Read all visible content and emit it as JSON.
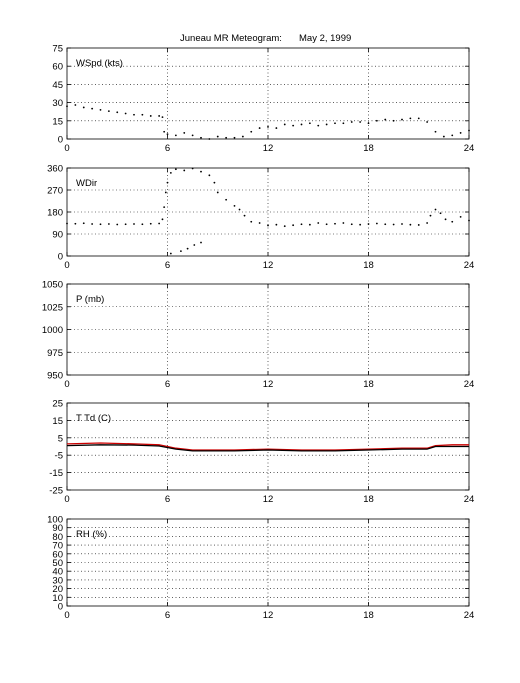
{
  "figure": {
    "title": "Juneau MR Meteogram:",
    "date": "May  2, 1999"
  },
  "chart_data": [
    {
      "type": "scatter",
      "label": "WSpd (kts)",
      "ylim": [
        0,
        75
      ],
      "yticks": [
        0,
        15,
        30,
        45,
        60,
        75
      ],
      "xlim": [
        0,
        24
      ],
      "xticks": [
        0,
        6,
        12,
        18,
        24
      ],
      "grid": true,
      "series": [
        {
          "color": "#000000",
          "points": [
            [
              0,
              27
            ],
            [
              0.5,
              28
            ],
            [
              1,
              26
            ],
            [
              1.5,
              25
            ],
            [
              2,
              24
            ],
            [
              2.5,
              23
            ],
            [
              3,
              22
            ],
            [
              3.5,
              21
            ],
            [
              4,
              20
            ],
            [
              4.5,
              20
            ],
            [
              5,
              19
            ],
            [
              5.5,
              19
            ],
            [
              5.7,
              18
            ],
            [
              5.8,
              6
            ],
            [
              6,
              4
            ],
            [
              6.5,
              3
            ],
            [
              7,
              5
            ],
            [
              7.5,
              3
            ],
            [
              8,
              1
            ],
            [
              8.5,
              0
            ],
            [
              9,
              2
            ],
            [
              9.5,
              1
            ],
            [
              10,
              1
            ],
            [
              10.5,
              2
            ],
            [
              11,
              6
            ],
            [
              11.5,
              9
            ],
            [
              12,
              10
            ],
            [
              12.5,
              9
            ],
            [
              13,
              12
            ],
            [
              13.5,
              11
            ],
            [
              14,
              12
            ],
            [
              14.5,
              13
            ],
            [
              15,
              11
            ],
            [
              15.5,
              12
            ],
            [
              16,
              13
            ],
            [
              16.5,
              13
            ],
            [
              17,
              14
            ],
            [
              17.5,
              14
            ],
            [
              18,
              13
            ],
            [
              18.5,
              15
            ],
            [
              19,
              16
            ],
            [
              19.5,
              15
            ],
            [
              20,
              16
            ],
            [
              20.5,
              17
            ],
            [
              21,
              17
            ],
            [
              21.5,
              14
            ],
            [
              22,
              6
            ],
            [
              22.5,
              2
            ],
            [
              23,
              3
            ],
            [
              23.5,
              5
            ],
            [
              24,
              7
            ]
          ]
        }
      ]
    },
    {
      "type": "scatter",
      "label": "WDir",
      "ylim": [
        0,
        360
      ],
      "yticks": [
        0,
        90,
        180,
        270,
        360
      ],
      "xlim": [
        0,
        24
      ],
      "xticks": [
        0,
        6,
        12,
        18,
        24
      ],
      "grid": true,
      "series": [
        {
          "color": "#000000",
          "points": [
            [
              0,
              133
            ],
            [
              0.5,
              132
            ],
            [
              1,
              134
            ],
            [
              1.5,
              131
            ],
            [
              2,
              130
            ],
            [
              2.5,
              131
            ],
            [
              3,
              129
            ],
            [
              3.5,
              130
            ],
            [
              4,
              131
            ],
            [
              4.5,
              130
            ],
            [
              5,
              132
            ],
            [
              5.5,
              133
            ],
            [
              5.7,
              150
            ],
            [
              5.8,
              200
            ],
            [
              5.9,
              260
            ],
            [
              6,
              300
            ],
            [
              6.2,
              340
            ],
            [
              6.5,
              355
            ],
            [
              7,
              350
            ],
            [
              7.5,
              358
            ],
            [
              8,
              345
            ],
            [
              8.5,
              330
            ],
            [
              8.8,
              300
            ],
            [
              6.2,
              10
            ],
            [
              6.8,
              20
            ],
            [
              7.2,
              30
            ],
            [
              7.6,
              45
            ],
            [
              8,
              55
            ],
            [
              9,
              260
            ],
            [
              9.5,
              230
            ],
            [
              10,
              205
            ],
            [
              10.3,
              190
            ],
            [
              10.6,
              165
            ],
            [
              11,
              140
            ],
            [
              11.5,
              135
            ],
            [
              12,
              125
            ],
            [
              12.5,
              128
            ],
            [
              13,
              122
            ],
            [
              13.5,
              126
            ],
            [
              14,
              130
            ],
            [
              14.5,
              128
            ],
            [
              15,
              135
            ],
            [
              15.5,
              130
            ],
            [
              16,
              132
            ],
            [
              16.5,
              135
            ],
            [
              17,
              130
            ],
            [
              17.5,
              128
            ],
            [
              18,
              131
            ],
            [
              18.5,
              133
            ],
            [
              19,
              130
            ],
            [
              19.5,
              129
            ],
            [
              20,
              131
            ],
            [
              20.5,
              128
            ],
            [
              21,
              127
            ],
            [
              21.5,
              135
            ],
            [
              21.7,
              165
            ],
            [
              22,
              190
            ],
            [
              22.3,
              175
            ],
            [
              22.6,
              150
            ],
            [
              23,
              140
            ],
            [
              23.5,
              160
            ],
            [
              24,
              145
            ]
          ]
        }
      ]
    },
    {
      "type": "line",
      "label": "P (mb)",
      "ylim": [
        950,
        1050
      ],
      "yticks": [
        950,
        975,
        1000,
        1025,
        1050
      ],
      "xlim": [
        0,
        24
      ],
      "xticks": [
        0,
        6,
        12,
        18,
        24
      ],
      "grid": true,
      "series": []
    },
    {
      "type": "line",
      "label": "T Td (C)",
      "ylim": [
        -25,
        25
      ],
      "yticks": [
        -25,
        -15,
        -5,
        5,
        15,
        25
      ],
      "xlim": [
        0,
        24
      ],
      "xticks": [
        0,
        6,
        12,
        18,
        24
      ],
      "grid": true,
      "series": [
        {
          "color": "#cc0000",
          "points": [
            [
              0,
              1.5
            ],
            [
              2,
              2
            ],
            [
              4,
              1.5
            ],
            [
              5.5,
              1
            ],
            [
              6.5,
              -1
            ],
            [
              7.5,
              -2
            ],
            [
              10,
              -2
            ],
            [
              12,
              -1.5
            ],
            [
              14,
              -2
            ],
            [
              16,
              -2
            ],
            [
              18,
              -1.5
            ],
            [
              20,
              -1
            ],
            [
              21.5,
              -1
            ],
            [
              22,
              0.5
            ],
            [
              23,
              1
            ],
            [
              24,
              1
            ]
          ]
        },
        {
          "color": "#000000",
          "points": [
            [
              0,
              0.5
            ],
            [
              2,
              1
            ],
            [
              4,
              0.8
            ],
            [
              5.5,
              0.3
            ],
            [
              6.5,
              -1.5
            ],
            [
              7.5,
              -2.5
            ],
            [
              10,
              -2.5
            ],
            [
              12,
              -2
            ],
            [
              14,
              -2.5
            ],
            [
              16,
              -2.5
            ],
            [
              18,
              -2
            ],
            [
              20,
              -1.5
            ],
            [
              21.5,
              -1.5
            ],
            [
              22,
              0
            ],
            [
              23,
              0
            ],
            [
              24,
              0
            ]
          ]
        }
      ]
    },
    {
      "type": "line",
      "label": "RH (%)",
      "ylim": [
        0,
        100
      ],
      "yticks": [
        0,
        10,
        20,
        30,
        40,
        50,
        60,
        70,
        80,
        90,
        100
      ],
      "xlim": [
        0,
        24
      ],
      "xticks": [
        0,
        6,
        12,
        18,
        24
      ],
      "grid": true,
      "series": []
    }
  ]
}
